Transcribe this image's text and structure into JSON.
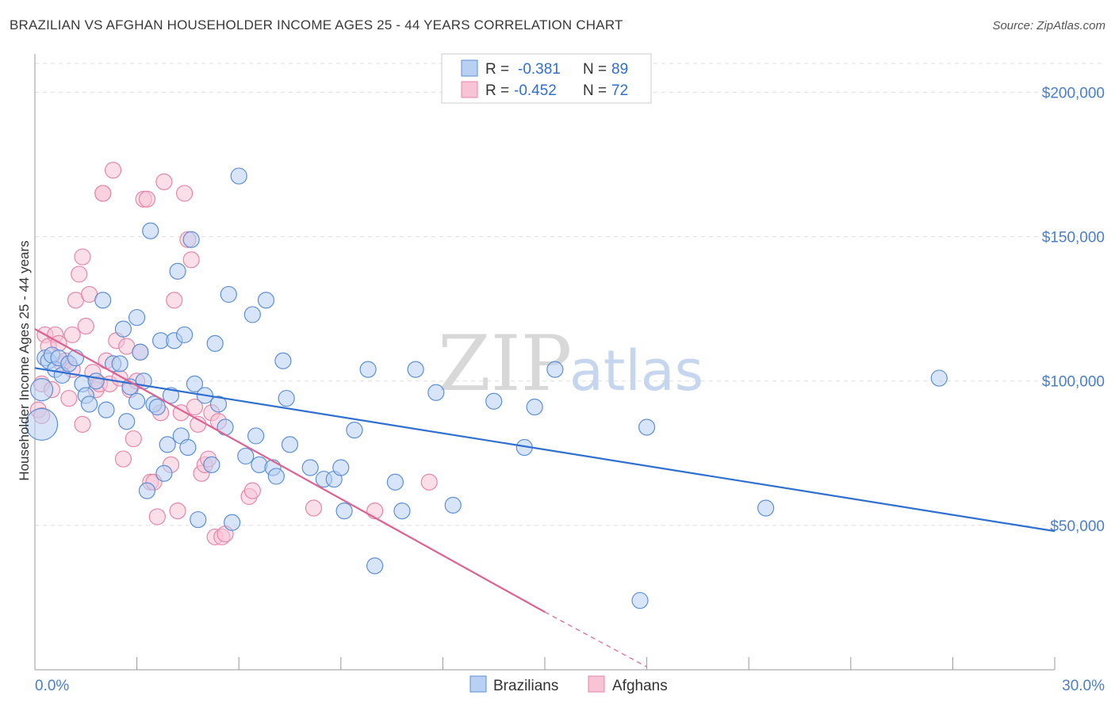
{
  "title": "BRAZILIAN VS AFGHAN HOUSEHOLDER INCOME AGES 25 - 44 YEARS CORRELATION CHART",
  "source": "Source: ZipAtlas.com",
  "watermark": {
    "zip": "ZIP",
    "atlas": "atlas"
  },
  "colors": {
    "brazilians_fill": "#b8d0f2",
    "brazilians_stroke": "#5b8fd6",
    "brazilians_line": "#2f6fd1",
    "afghans_fill": "#f7c4d6",
    "afghans_stroke": "#e586a8",
    "afghans_line": "#e0608f",
    "grid": "#dddddd",
    "tick_label": "#4a7fc8"
  },
  "legend_top": {
    "rows": [
      {
        "r_label": "R =",
        "r_value": "-0.381",
        "n_label": "N =",
        "n_value": "89"
      },
      {
        "r_label": "R =",
        "r_value": "-0.452",
        "n_label": "N =",
        "n_value": "72"
      }
    ]
  },
  "chart_data": {
    "type": "scatter",
    "title": "BRAZILIAN VS AFGHAN HOUSEHOLDER INCOME AGES 25 - 44 YEARS CORRELATION CHART",
    "xlabel": "",
    "ylabel": "Householder Income Ages 25 - 44 years",
    "xlim": [
      0,
      30
    ],
    "ylim": [
      0,
      210000
    ],
    "x_tick_labels": [
      "0.0%",
      "30.0%"
    ],
    "y_ticks": [
      50000,
      100000,
      150000,
      200000
    ],
    "y_tick_labels": [
      "$50,000",
      "$100,000",
      "$150,000",
      "$200,000"
    ],
    "grid": true,
    "legend_placement": "bottom-center",
    "series": [
      {
        "name": "Brazilians",
        "trend": {
          "x": [
            0,
            30
          ],
          "y": [
            104500,
            48000
          ]
        },
        "points": [
          [
            0.2,
            85000
          ],
          [
            0.2,
            97000
          ],
          [
            0.3,
            108000
          ],
          [
            0.4,
            107000
          ],
          [
            0.5,
            109000
          ],
          [
            0.6,
            104000
          ],
          [
            0.7,
            108000
          ],
          [
            0.8,
            102000
          ],
          [
            1.0,
            106000
          ],
          [
            1.2,
            108000
          ],
          [
            1.4,
            99000
          ],
          [
            1.5,
            95000
          ],
          [
            1.6,
            92000
          ],
          [
            1.8,
            100000
          ],
          [
            2.0,
            128000
          ],
          [
            2.1,
            90000
          ],
          [
            2.3,
            106000
          ],
          [
            2.5,
            106000
          ],
          [
            2.6,
            118000
          ],
          [
            2.7,
            86000
          ],
          [
            2.8,
            98000
          ],
          [
            3.0,
            93000
          ],
          [
            3.0,
            122000
          ],
          [
            3.1,
            110000
          ],
          [
            3.2,
            100000
          ],
          [
            3.3,
            62000
          ],
          [
            3.4,
            152000
          ],
          [
            3.5,
            92000
          ],
          [
            3.6,
            91000
          ],
          [
            3.7,
            114000
          ],
          [
            3.8,
            68000
          ],
          [
            3.9,
            78000
          ],
          [
            4.0,
            95000
          ],
          [
            4.1,
            114000
          ],
          [
            4.2,
            138000
          ],
          [
            4.3,
            81000
          ],
          [
            4.4,
            116000
          ],
          [
            4.5,
            77000
          ],
          [
            4.6,
            149000
          ],
          [
            4.7,
            99000
          ],
          [
            4.8,
            52000
          ],
          [
            5.0,
            95000
          ],
          [
            5.2,
            71000
          ],
          [
            5.3,
            113000
          ],
          [
            5.4,
            92000
          ],
          [
            5.6,
            84000
          ],
          [
            5.7,
            130000
          ],
          [
            5.8,
            51000
          ],
          [
            6.0,
            171000
          ],
          [
            6.2,
            74000
          ],
          [
            6.4,
            123000
          ],
          [
            6.5,
            81000
          ],
          [
            6.6,
            71000
          ],
          [
            6.8,
            128000
          ],
          [
            7.0,
            70000
          ],
          [
            7.1,
            67000
          ],
          [
            7.3,
            107000
          ],
          [
            7.4,
            94000
          ],
          [
            7.5,
            78000
          ],
          [
            8.1,
            70000
          ],
          [
            8.5,
            66000
          ],
          [
            8.8,
            66000
          ],
          [
            9.0,
            70000
          ],
          [
            9.1,
            55000
          ],
          [
            9.4,
            83000
          ],
          [
            9.8,
            104000
          ],
          [
            10.0,
            36000
          ],
          [
            10.6,
            65000
          ],
          [
            10.8,
            55000
          ],
          [
            11.2,
            104000
          ],
          [
            11.8,
            96000
          ],
          [
            12.3,
            57000
          ],
          [
            13.5,
            93000
          ],
          [
            14.4,
            77000
          ],
          [
            14.7,
            91000
          ],
          [
            15.3,
            104000
          ],
          [
            17.8,
            24000
          ],
          [
            18.0,
            84000
          ],
          [
            21.5,
            56000
          ],
          [
            26.6,
            101000
          ]
        ]
      },
      {
        "name": "Afghans",
        "trend": {
          "x": [
            0,
            15
          ],
          "y": [
            118000,
            20000
          ]
        },
        "trend_dashed": {
          "x": [
            15,
            18
          ],
          "y": [
            20000,
            1000
          ]
        },
        "points": [
          [
            0.1,
            90000
          ],
          [
            0.2,
            88000
          ],
          [
            0.2,
            99000
          ],
          [
            0.3,
            116000
          ],
          [
            0.4,
            112000
          ],
          [
            0.5,
            97000
          ],
          [
            0.6,
            116000
          ],
          [
            0.7,
            113000
          ],
          [
            0.8,
            106000
          ],
          [
            0.9,
            107000
          ],
          [
            1.0,
            94000
          ],
          [
            1.1,
            104000
          ],
          [
            1.1,
            116000
          ],
          [
            1.2,
            128000
          ],
          [
            1.3,
            137000
          ],
          [
            1.4,
            143000
          ],
          [
            1.4,
            85000
          ],
          [
            1.5,
            119000
          ],
          [
            1.6,
            130000
          ],
          [
            1.7,
            103000
          ],
          [
            1.8,
            97000
          ],
          [
            1.9,
            99000
          ],
          [
            2.0,
            165000
          ],
          [
            2.0,
            165000
          ],
          [
            2.1,
            107000
          ],
          [
            2.2,
            99000
          ],
          [
            2.3,
            173000
          ],
          [
            2.4,
            114000
          ],
          [
            2.5,
            101000
          ],
          [
            2.6,
            73000
          ],
          [
            2.7,
            112000
          ],
          [
            2.8,
            97000
          ],
          [
            2.9,
            80000
          ],
          [
            3.0,
            100000
          ],
          [
            3.1,
            110000
          ],
          [
            3.2,
            163000
          ],
          [
            3.3,
            163000
          ],
          [
            3.4,
            65000
          ],
          [
            3.5,
            65000
          ],
          [
            3.6,
            53000
          ],
          [
            3.7,
            89000
          ],
          [
            3.8,
            169000
          ],
          [
            4.0,
            71000
          ],
          [
            4.1,
            128000
          ],
          [
            4.2,
            55000
          ],
          [
            4.3,
            89000
          ],
          [
            4.4,
            165000
          ],
          [
            4.5,
            149000
          ],
          [
            4.6,
            142000
          ],
          [
            4.7,
            91000
          ],
          [
            4.8,
            85000
          ],
          [
            4.9,
            68000
          ],
          [
            5.0,
            71000
          ],
          [
            5.1,
            73000
          ],
          [
            5.2,
            89000
          ],
          [
            5.3,
            46000
          ],
          [
            5.4,
            86000
          ],
          [
            5.5,
            46000
          ],
          [
            5.6,
            47000
          ],
          [
            6.3,
            60000
          ],
          [
            6.4,
            62000
          ],
          [
            8.2,
            56000
          ],
          [
            10.0,
            55000
          ],
          [
            11.6,
            65000
          ]
        ]
      }
    ]
  },
  "legend_bottom": {
    "items": [
      "Brazilians",
      "Afghans"
    ]
  }
}
